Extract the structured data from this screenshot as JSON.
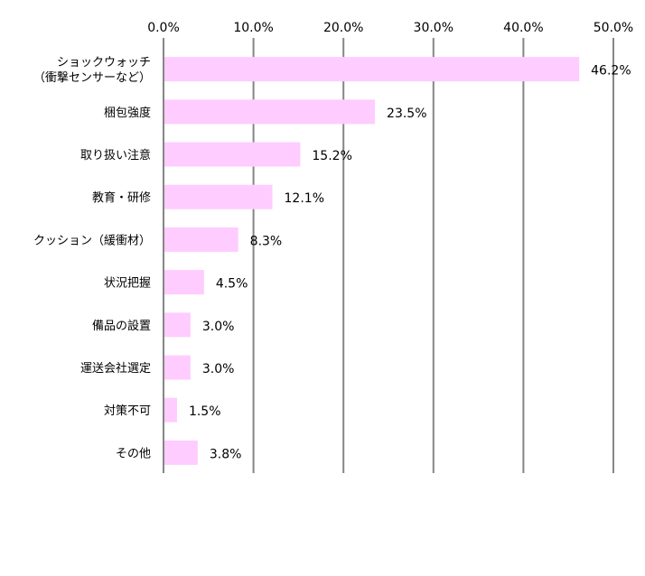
{
  "chart_data": {
    "type": "bar",
    "orientation": "horizontal",
    "categories": [
      [
        "ショックウォッチ",
        "（衝撃センサーなど）"
      ],
      [
        "梱包強度"
      ],
      [
        "取り扱い注意"
      ],
      [
        "教育・研修"
      ],
      [
        "クッション（緩衝材）"
      ],
      [
        "状況把握"
      ],
      [
        "備品の設置"
      ],
      [
        "運送会社選定"
      ],
      [
        "対策不可"
      ],
      [
        "その他"
      ]
    ],
    "values": [
      46.2,
      23.5,
      15.2,
      12.1,
      8.3,
      4.5,
      3.0,
      3.0,
      1.5,
      3.8
    ],
    "data_labels": [
      "46.2%",
      "23.5%",
      "15.2%",
      "12.1%",
      "8.3%",
      "4.5%",
      "3.0%",
      "3.0%",
      "1.5%",
      "3.8%"
    ],
    "xlim": [
      0,
      50
    ],
    "x_ticks": [
      0,
      10,
      20,
      30,
      40,
      50
    ],
    "x_tick_labels": [
      "0.0%",
      "10.0%",
      "20.0%",
      "30.0%",
      "40.0%",
      "50.0%"
    ],
    "x_axis_position": "top",
    "grid": true,
    "legend": "none",
    "title": "",
    "xlabel": "",
    "ylabel": "",
    "colors": {
      "bar": "#FFCCFF",
      "grid": "#868686"
    }
  }
}
